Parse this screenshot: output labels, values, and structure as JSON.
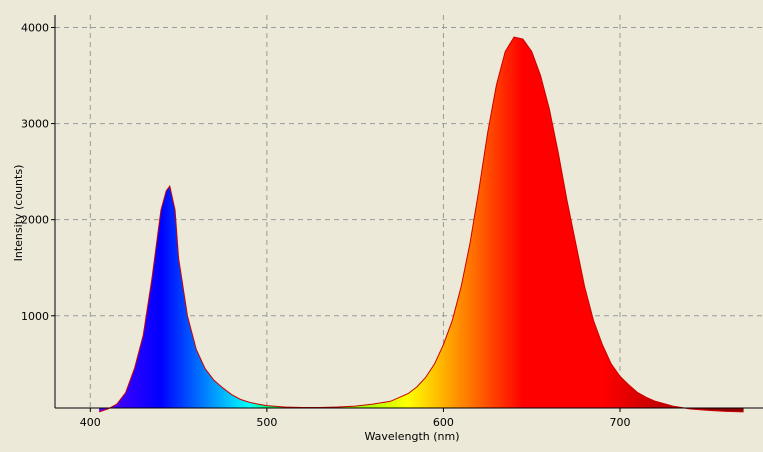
{
  "chart_data": {
    "type": "area",
    "x_label": "Wavelength (nm)",
    "y_label": "Intensity (counts)",
    "x": [
      405,
      410,
      415,
      420,
      425,
      430,
      435,
      440,
      443,
      445,
      448,
      450,
      455,
      460,
      465,
      470,
      475,
      480,
      485,
      490,
      495,
      500,
      510,
      520,
      530,
      540,
      550,
      560,
      570,
      580,
      585,
      590,
      595,
      600,
      605,
      610,
      615,
      620,
      625,
      630,
      635,
      640,
      645,
      650,
      655,
      660,
      665,
      670,
      675,
      680,
      685,
      690,
      695,
      700,
      705,
      710,
      715,
      720,
      730,
      740,
      750,
      760,
      770
    ],
    "series": [
      {
        "color": "#cc0000",
        "values": [
          0,
          30,
          80,
          200,
          450,
          800,
          1400,
          2100,
          2300,
          2350,
          2100,
          1600,
          1000,
          650,
          450,
          330,
          250,
          180,
          130,
          100,
          80,
          65,
          50,
          45,
          45,
          50,
          60,
          80,
          110,
          190,
          260,
          360,
          500,
          700,
          950,
          1300,
          1750,
          2300,
          2900,
          3400,
          3750,
          3900,
          3880,
          3750,
          3500,
          3150,
          2700,
          2200,
          1750,
          1300,
          950,
          700,
          500,
          370,
          280,
          200,
          150,
          110,
          60,
          30,
          15,
          5,
          0
        ]
      }
    ],
    "xlim": [
      380,
      781
    ],
    "ylim": [
      40,
      4130
    ],
    "xticks": [
      400,
      500,
      600,
      700
    ],
    "yticks": [
      1000,
      2000,
      3000,
      4000
    ],
    "grid": true
  }
}
